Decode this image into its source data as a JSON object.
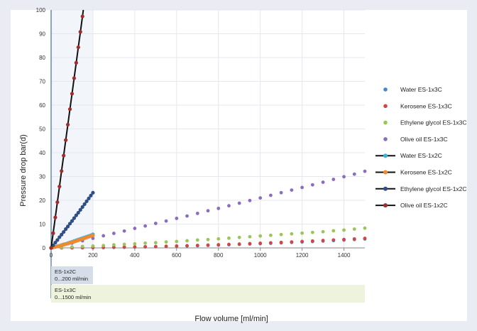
{
  "chart_data": {
    "type": "scatter",
    "xlabel": "Flow volume [ml/min]",
    "ylabel": "Pressure drop bar(d)",
    "xlim": [
      0,
      1500
    ],
    "ylim": [
      0,
      100
    ],
    "x_ticks": [
      0,
      200,
      400,
      600,
      800,
      1000,
      1200,
      1400
    ],
    "y_ticks": [
      0,
      10,
      20,
      30,
      40,
      50,
      60,
      70,
      80,
      90,
      100
    ],
    "grid": true,
    "legend_position": "right",
    "ranges": [
      {
        "model": "ES-1x2C",
        "range": "0...200 ml/min",
        "x_max": 200,
        "color": "#d5dde9",
        "band_color": "#f2f5fa"
      },
      {
        "model": "ES-1x3C",
        "range": "0...1500 ml/min",
        "x_max": 1500,
        "color": "#eef3de"
      }
    ],
    "series": [
      {
        "name": "Water ES-1x3C",
        "style": "markers",
        "color": "#4a86c8",
        "x": [
          0,
          50,
          100,
          150,
          200,
          250,
          300,
          350,
          400,
          450,
          500,
          550,
          600,
          650,
          700,
          750,
          800,
          850,
          900,
          950,
          1000,
          1050,
          1100,
          1150,
          1200,
          1250,
          1300,
          1350,
          1400,
          1450,
          1500
        ],
        "y": [
          0,
          0.01,
          0.03,
          0.06,
          0.1,
          0.14,
          0.2,
          0.26,
          0.34,
          0.42,
          0.5,
          0.6,
          0.7,
          0.81,
          0.93,
          1.05,
          1.18,
          1.32,
          1.46,
          1.61,
          1.77,
          1.94,
          2.11,
          2.29,
          2.47,
          2.67,
          2.87,
          3.07,
          3.28,
          3.5,
          3.73
        ]
      },
      {
        "name": "Kerosene ES-1x3C",
        "style": "markers",
        "color": "#d24545",
        "x": [
          0,
          50,
          100,
          150,
          200,
          250,
          300,
          350,
          400,
          450,
          500,
          550,
          600,
          650,
          700,
          750,
          800,
          850,
          900,
          950,
          1000,
          1050,
          1100,
          1150,
          1200,
          1250,
          1300,
          1350,
          1400,
          1450,
          1500
        ],
        "y": [
          0,
          0.01,
          0.04,
          0.08,
          0.13,
          0.18,
          0.24,
          0.32,
          0.4,
          0.49,
          0.58,
          0.69,
          0.8,
          0.92,
          1.05,
          1.18,
          1.32,
          1.47,
          1.63,
          1.79,
          1.96,
          2.13,
          2.32,
          2.51,
          2.7,
          2.9,
          3.11,
          3.33,
          3.55,
          3.77,
          4.01
        ]
      },
      {
        "name": "Ethylene glycol ES-1x3C",
        "style": "markers",
        "color": "#9cc45a",
        "x": [
          0,
          50,
          100,
          150,
          200,
          250,
          300,
          350,
          400,
          450,
          500,
          550,
          600,
          650,
          700,
          750,
          800,
          850,
          900,
          950,
          1000,
          1050,
          1100,
          1150,
          1200,
          1250,
          1300,
          1350,
          1400,
          1450,
          1500
        ],
        "y": [
          0,
          0.2,
          0.4,
          0.6,
          0.8,
          1.0,
          1.3,
          1.5,
          1.7,
          2.0,
          2.2,
          2.5,
          2.7,
          3.0,
          3.3,
          3.5,
          3.8,
          4.1,
          4.4,
          4.7,
          5.0,
          5.3,
          5.6,
          5.9,
          6.2,
          6.5,
          6.8,
          7.2,
          7.5,
          7.9,
          8.3
        ]
      },
      {
        "name": "Olive oil ES-1x3C",
        "style": "markers",
        "color": "#8a6cc0",
        "x": [
          0,
          50,
          100,
          150,
          200,
          250,
          300,
          350,
          400,
          450,
          500,
          550,
          600,
          650,
          700,
          750,
          800,
          850,
          900,
          950,
          1000,
          1050,
          1100,
          1150,
          1200,
          1250,
          1300,
          1350,
          1400,
          1450,
          1500
        ],
        "y": [
          0,
          1.0,
          2.0,
          3.0,
          4.0,
          5.1,
          6.1,
          7.1,
          8.2,
          9.2,
          10.3,
          11.3,
          12.4,
          13.4,
          14.5,
          15.6,
          16.6,
          17.7,
          18.8,
          19.9,
          21.0,
          22.1,
          23.2,
          24.3,
          25.4,
          26.5,
          27.6,
          28.8,
          29.9,
          31.0,
          32.2
        ]
      },
      {
        "name": "Water ES-1x2C",
        "style": "line-markers",
        "color": "#3bb0da",
        "x": [
          0,
          10,
          20,
          30,
          40,
          50,
          60,
          70,
          80,
          90,
          100,
          110,
          120,
          130,
          140,
          150,
          160,
          170,
          180,
          190,
          200
        ],
        "y": [
          0,
          0.2,
          0.4,
          0.7,
          0.9,
          1.2,
          1.5,
          1.7,
          2.0,
          2.3,
          2.6,
          2.9,
          3.2,
          3.5,
          3.8,
          4.1,
          4.4,
          4.7,
          5.0,
          5.3,
          5.7
        ]
      },
      {
        "name": "Kerosene ES-1x2C",
        "style": "line-markers",
        "color": "#ef8a2c",
        "x": [
          0,
          10,
          20,
          30,
          40,
          50,
          60,
          70,
          80,
          90,
          100,
          110,
          120,
          130,
          140,
          150,
          160,
          170,
          180,
          190,
          200
        ],
        "y": [
          0,
          0.2,
          0.4,
          0.6,
          0.8,
          1.1,
          1.3,
          1.6,
          1.8,
          2.1,
          2.4,
          2.6,
          2.9,
          3.2,
          3.5,
          3.8,
          4.1,
          4.4,
          4.7,
          5.0,
          5.3
        ]
      },
      {
        "name": "Ethylene glycol ES-1x2C",
        "style": "line-markers",
        "color": "#2e4e85",
        "x": [
          0,
          10,
          20,
          30,
          40,
          50,
          60,
          70,
          80,
          90,
          100,
          110,
          120,
          130,
          140,
          150,
          160,
          170,
          180,
          190,
          200
        ],
        "y": [
          0,
          1.1,
          2.2,
          3.3,
          4.5,
          5.6,
          6.7,
          7.9,
          9.0,
          10.2,
          11.3,
          12.5,
          13.7,
          14.8,
          16.0,
          17.2,
          18.4,
          19.6,
          20.8,
          22.0,
          23.2
        ]
      },
      {
        "name": "Olive oil ES-1x2C",
        "style": "line-markers",
        "color": "#9e2d2d",
        "x": [
          0,
          10,
          20,
          30,
          40,
          50,
          60,
          70,
          80,
          90,
          100,
          110,
          120,
          130,
          140,
          150,
          160
        ],
        "y": [
          0,
          6.2,
          12.8,
          19.2,
          25.8,
          32.3,
          38.8,
          45.3,
          51.8,
          58.3,
          64.8,
          71.3,
          77.8,
          84.3,
          90.8,
          97.3,
          103.8
        ]
      }
    ]
  }
}
